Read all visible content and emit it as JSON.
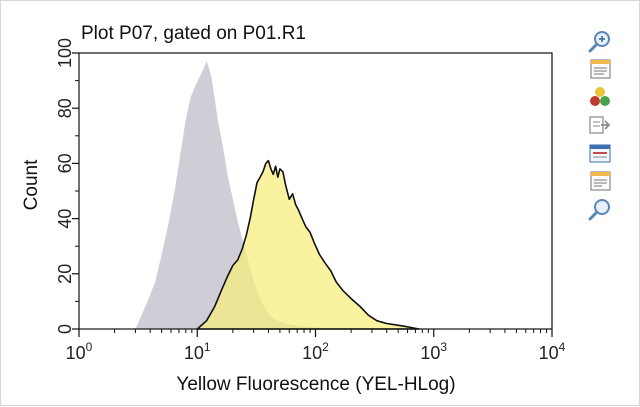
{
  "chart_data": {
    "type": "area",
    "title": "Plot P07, gated on P01.R1",
    "xlabel": "Yellow Fluorescence (YEL-HLog)",
    "ylabel": "Count",
    "x_scale": "log",
    "xlim": [
      1,
      10000
    ],
    "ylim": [
      0,
      100
    ],
    "x_tick_labels": [
      {
        "base": "10",
        "exp": "0"
      },
      {
        "base": "10",
        "exp": "1"
      },
      {
        "base": "10",
        "exp": "2"
      },
      {
        "base": "10",
        "exp": "3"
      },
      {
        "base": "10",
        "exp": "4"
      }
    ],
    "y_tick_labels": [
      "0",
      "20",
      "40",
      "60",
      "80",
      "100"
    ],
    "grid": false,
    "legend": "none",
    "series": [
      {
        "color": "#cfcdd6",
        "x": [
          3,
          3.3,
          3.8,
          4.4,
          5,
          5.7,
          6.5,
          7.3,
          8,
          8.8,
          9.6,
          10.4,
          11.2,
          12,
          12.5,
          13.2,
          14,
          15,
          16.5,
          18,
          20,
          22,
          25,
          28,
          32,
          36,
          41,
          48,
          56,
          65,
          80,
          100,
          130,
          170
        ],
        "y": [
          0,
          4,
          10,
          17,
          27,
          38,
          51,
          65,
          76,
          84,
          88,
          91,
          94,
          97,
          95,
          91,
          84,
          75,
          66,
          56,
          47,
          39,
          30,
          22,
          14,
          9,
          5,
          3,
          2,
          1.5,
          1,
          0.5,
          0.3,
          0
        ]
      },
      {
        "color": "#f6ee7c",
        "outline": "#111111",
        "x": [
          10,
          12,
          14,
          16,
          18,
          20,
          22,
          24,
          26,
          28,
          30,
          32,
          34,
          36,
          38,
          40,
          42,
          44,
          46,
          48,
          50,
          53,
          56,
          60,
          64,
          68,
          72,
          77,
          83,
          90,
          98,
          108,
          120,
          135,
          150,
          170,
          200,
          240,
          280,
          330,
          400,
          480,
          560,
          650,
          750
        ],
        "y": [
          0,
          3,
          8,
          14,
          19,
          23,
          25,
          29,
          34,
          40,
          47,
          53,
          55,
          57,
          60,
          61,
          58,
          56,
          59,
          55,
          58,
          57,
          52,
          47,
          49,
          45,
          43,
          40,
          37,
          35,
          31,
          27,
          24,
          21,
          17,
          14,
          11,
          8,
          5,
          3,
          2,
          1.5,
          1,
          0.5,
          0
        ]
      }
    ]
  },
  "toolbar": [
    {
      "icon": "zoom-in-icon"
    },
    {
      "icon": "properties-icon"
    },
    {
      "icon": "color-gates-icon"
    },
    {
      "icon": "export-icon"
    },
    {
      "icon": "window-icon"
    },
    {
      "icon": "notes-icon"
    },
    {
      "icon": "zoom-out-icon"
    }
  ]
}
